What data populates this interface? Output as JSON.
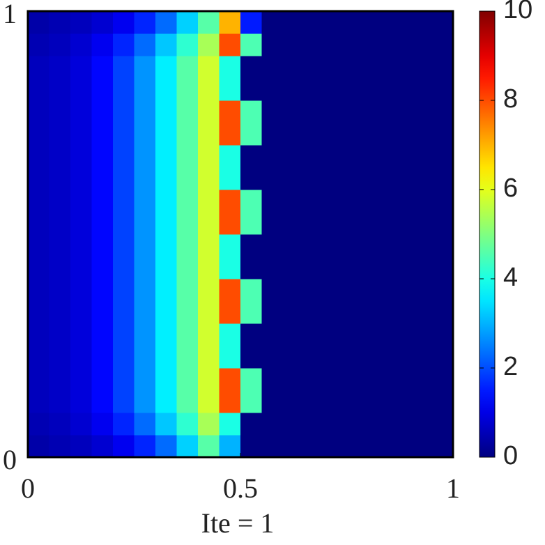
{
  "chart_data": {
    "type": "heatmap",
    "xlabel": "Ite = 1",
    "xlim": [
      0,
      1
    ],
    "ylim": [
      0,
      1
    ],
    "xticks": [
      0,
      0.5,
      1
    ],
    "yticks": [
      0,
      1
    ],
    "colormap": "jet",
    "clim": [
      0,
      10
    ],
    "colorbar_ticks": [
      0,
      2,
      4,
      6,
      8,
      10
    ],
    "values": [
      [
        0.4,
        0.5,
        0.6,
        0.8,
        1.1,
        1.6,
        2.3,
        3.3,
        4.6,
        3,
        0,
        0,
        0,
        0,
        0,
        0,
        0,
        0,
        0,
        0
      ],
      [
        0.5,
        0.6,
        0.8,
        1.1,
        1.6,
        2.3,
        3.2,
        4.2,
        5.4,
        4,
        0,
        0,
        0,
        0,
        0,
        0,
        0,
        0,
        0,
        0
      ],
      [
        0.6,
        0.7,
        0.9,
        1.3,
        1.9,
        2.7,
        3.6,
        4.6,
        5.8,
        8,
        4.5,
        0,
        0,
        0,
        0,
        0,
        0,
        0,
        0,
        0
      ],
      [
        0.6,
        0.7,
        0.9,
        1.3,
        1.9,
        2.7,
        3.6,
        4.6,
        5.8,
        8,
        4.5,
        0,
        0,
        0,
        0,
        0,
        0,
        0,
        0,
        0
      ],
      [
        0.6,
        0.7,
        0.9,
        1.3,
        1.9,
        2.7,
        3.6,
        4.6,
        5.8,
        4,
        0,
        0,
        0,
        0,
        0,
        0,
        0,
        0,
        0,
        0
      ],
      [
        0.6,
        0.7,
        0.9,
        1.3,
        1.9,
        2.7,
        3.6,
        4.6,
        5.8,
        4,
        0,
        0,
        0,
        0,
        0,
        0,
        0,
        0,
        0,
        0
      ],
      [
        0.6,
        0.7,
        0.9,
        1.3,
        1.9,
        2.7,
        3.6,
        4.6,
        5.8,
        8,
        4.5,
        0,
        0,
        0,
        0,
        0,
        0,
        0,
        0,
        0
      ],
      [
        0.6,
        0.7,
        0.9,
        1.3,
        1.9,
        2.7,
        3.6,
        4.6,
        5.8,
        8,
        4.5,
        0,
        0,
        0,
        0,
        0,
        0,
        0,
        0,
        0
      ],
      [
        0.6,
        0.7,
        0.9,
        1.3,
        1.9,
        2.7,
        3.6,
        4.6,
        5.8,
        4,
        0,
        0,
        0,
        0,
        0,
        0,
        0,
        0,
        0,
        0
      ],
      [
        0.6,
        0.7,
        0.9,
        1.3,
        1.9,
        2.7,
        3.6,
        4.6,
        5.8,
        4,
        0,
        0,
        0,
        0,
        0,
        0,
        0,
        0,
        0,
        0
      ],
      [
        0.6,
        0.7,
        0.9,
        1.3,
        1.9,
        2.7,
        3.6,
        4.6,
        5.8,
        8,
        4.5,
        0,
        0,
        0,
        0,
        0,
        0,
        0,
        0,
        0
      ],
      [
        0.6,
        0.7,
        0.9,
        1.3,
        1.9,
        2.7,
        3.6,
        4.6,
        5.8,
        8,
        4.5,
        0,
        0,
        0,
        0,
        0,
        0,
        0,
        0,
        0
      ],
      [
        0.6,
        0.7,
        0.9,
        1.3,
        1.9,
        2.7,
        3.6,
        4.6,
        5.8,
        4,
        0,
        0,
        0,
        0,
        0,
        0,
        0,
        0,
        0,
        0
      ],
      [
        0.6,
        0.7,
        0.9,
        1.3,
        1.9,
        2.7,
        3.6,
        4.6,
        5.8,
        4,
        0,
        0,
        0,
        0,
        0,
        0,
        0,
        0,
        0,
        0
      ],
      [
        0.6,
        0.7,
        0.9,
        1.3,
        1.9,
        2.7,
        3.6,
        4.6,
        5.8,
        8,
        4.5,
        0,
        0,
        0,
        0,
        0,
        0,
        0,
        0,
        0
      ],
      [
        0.6,
        0.7,
        0.9,
        1.3,
        1.9,
        2.7,
        3.6,
        4.6,
        5.8,
        8,
        4.5,
        0,
        0,
        0,
        0,
        0,
        0,
        0,
        0,
        0
      ],
      [
        0.6,
        0.7,
        0.9,
        1.3,
        1.9,
        2.7,
        3.6,
        4.6,
        5.8,
        4,
        0,
        0,
        0,
        0,
        0,
        0,
        0,
        0,
        0,
        0
      ],
      [
        0.6,
        0.7,
        0.9,
        1.3,
        1.9,
        2.7,
        3.6,
        4.6,
        5.8,
        4,
        0,
        0,
        0,
        0,
        0,
        0,
        0,
        0,
        0,
        0
      ],
      [
        0.5,
        0.6,
        0.8,
        1.1,
        1.6,
        2.3,
        3.2,
        4.2,
        5.4,
        8,
        4.5,
        0,
        0,
        0,
        0,
        0,
        0,
        0,
        0,
        0
      ],
      [
        0.4,
        0.5,
        0.6,
        0.8,
        1.1,
        1.6,
        2.3,
        3.3,
        4.6,
        7,
        1.5,
        0,
        0,
        0,
        0,
        0,
        0,
        0,
        0,
        0
      ]
    ]
  }
}
